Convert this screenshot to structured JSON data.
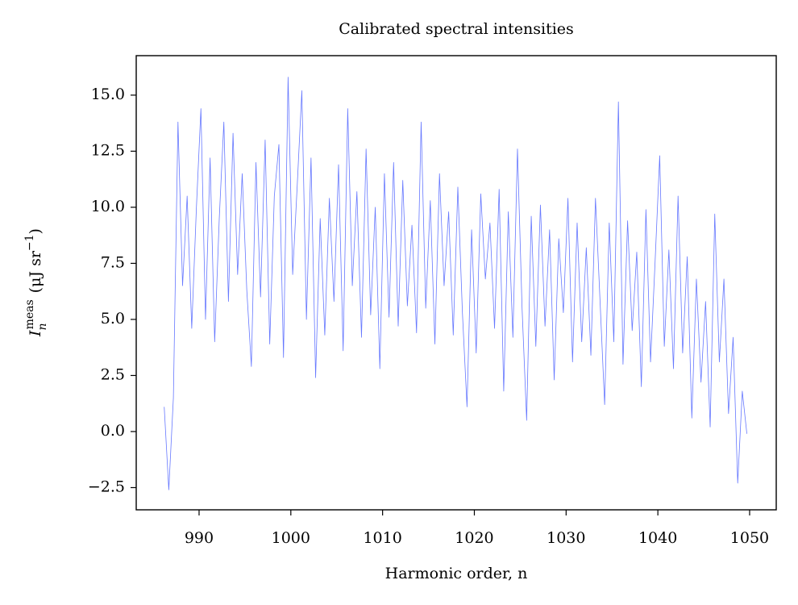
{
  "chart_data": {
    "type": "line",
    "title": "Calibrated spectral intensities",
    "x_label": "Harmonic order, n",
    "y_label_parts": [
      "I",
      "n",
      "meas",
      "(μJ sr",
      "−1",
      ")"
    ],
    "xlim": [
      983.15,
      1052.9
    ],
    "ylim": [
      -3.49,
      16.76
    ],
    "xticks": [
      990,
      1000,
      1010,
      1020,
      1030,
      1040,
      1050
    ],
    "yticks": [
      {
        "value": -2.5,
        "label": "−2.5"
      },
      {
        "value": 0,
        "label": "0.0"
      },
      {
        "value": 2.5,
        "label": "2.5"
      },
      {
        "value": 5,
        "label": "5.0"
      },
      {
        "value": 7.5,
        "label": "7.5"
      },
      {
        "value": 10,
        "label": "10.0"
      },
      {
        "value": 12.5,
        "label": "12.5"
      },
      {
        "value": 15,
        "label": "15.0"
      }
    ],
    "grid": false,
    "x": [
      986.2,
      986.7,
      987.2,
      987.7,
      988.2,
      988.7,
      989.2,
      989.7,
      990.2,
      990.7,
      991.2,
      991.7,
      992.2,
      992.7,
      993.2,
      993.7,
      994.2,
      994.7,
      995.2,
      995.7,
      996.2,
      996.7,
      997.2,
      997.7,
      998.2,
      998.7,
      999.2,
      999.7,
      1000.2,
      1000.7,
      1001.2,
      1001.7,
      1002.2,
      1002.7,
      1003.2,
      1003.7,
      1004.2,
      1004.7,
      1005.2,
      1005.7,
      1006.2,
      1006.7,
      1007.2,
      1007.7,
      1008.2,
      1008.7,
      1009.2,
      1009.7,
      1010.2,
      1010.7,
      1011.2,
      1011.7,
      1012.2,
      1012.7,
      1013.2,
      1013.7,
      1014.2,
      1014.7,
      1015.2,
      1015.7,
      1016.2,
      1016.7,
      1017.2,
      1017.7,
      1018.2,
      1018.7,
      1019.2,
      1019.7,
      1020.2,
      1020.7,
      1021.2,
      1021.7,
      1022.2,
      1022.7,
      1023.2,
      1023.7,
      1024.2,
      1024.7,
      1025.2,
      1025.7,
      1026.2,
      1026.7,
      1027.2,
      1027.7,
      1028.2,
      1028.7,
      1029.2,
      1029.7,
      1030.2,
      1030.7,
      1031.2,
      1031.7,
      1032.2,
      1032.7,
      1033.2,
      1033.7,
      1034.2,
      1034.7,
      1035.2,
      1035.7,
      1036.2,
      1036.7,
      1037.2,
      1037.7,
      1038.2,
      1038.7,
      1039.2,
      1039.7,
      1040.2,
      1040.7,
      1041.2,
      1041.7,
      1042.2,
      1042.7,
      1043.2,
      1043.7,
      1044.2,
      1044.7,
      1045.2,
      1045.7,
      1046.2,
      1046.7,
      1047.2,
      1047.7,
      1048.2,
      1048.7,
      1049.2,
      1049.7
    ],
    "series": [
      {
        "color": "#6678ff",
        "values": [
          1.1,
          -2.6,
          1.5,
          13.8,
          6.5,
          10.5,
          4.6,
          9.9,
          14.4,
          5.0,
          12.2,
          4.0,
          9.5,
          13.8,
          5.8,
          13.3,
          7.0,
          11.5,
          6.3,
          2.9,
          12.0,
          6.0,
          13.0,
          3.9,
          10.5,
          12.8,
          3.3,
          15.8,
          7.0,
          11.0,
          15.2,
          5.0,
          12.2,
          2.4,
          9.5,
          4.3,
          10.4,
          5.8,
          11.9,
          3.6,
          14.4,
          6.5,
          10.7,
          4.2,
          12.6,
          5.2,
          10.0,
          2.8,
          11.5,
          5.1,
          12.0,
          4.7,
          11.2,
          5.6,
          9.2,
          4.4,
          13.8,
          5.5,
          10.3,
          3.9,
          11.5,
          6.5,
          9.8,
          4.3,
          10.9,
          5.3,
          1.1,
          9.0,
          3.5,
          10.6,
          6.8,
          9.3,
          4.6,
          10.8,
          1.8,
          9.8,
          4.2,
          12.6,
          5.5,
          0.5,
          9.6,
          3.8,
          10.1,
          4.7,
          9.0,
          2.3,
          8.6,
          5.3,
          10.4,
          3.1,
          9.3,
          4.0,
          8.2,
          3.4,
          10.4,
          5.8,
          1.2,
          9.3,
          4.0,
          14.7,
          3.0,
          9.4,
          4.5,
          8.0,
          2.0,
          9.9,
          3.1,
          7.6,
          12.3,
          3.8,
          8.1,
          2.8,
          10.5,
          3.5,
          7.8,
          0.6,
          6.8,
          2.2,
          5.8,
          0.2,
          9.7,
          3.1,
          6.8,
          0.8,
          4.2,
          -2.3,
          1.8,
          -0.1
        ]
      }
    ]
  }
}
